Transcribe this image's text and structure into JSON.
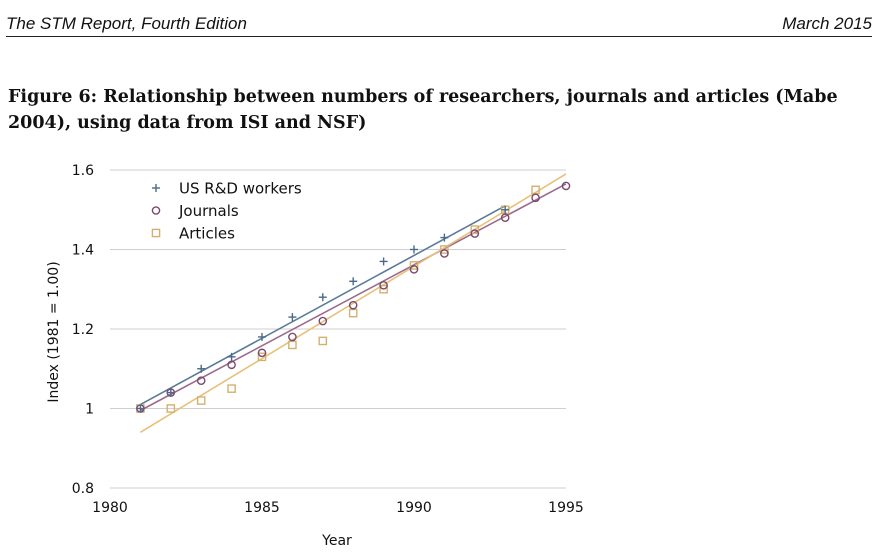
{
  "header": {
    "left": "The STM Report, Fourth Edition",
    "right": "March 2015"
  },
  "figure": {
    "title": "Figure 6: Relationship between numbers of researchers, journals and articles (Mabe 2004), using data from ISI and NSF)"
  },
  "chart_data": {
    "type": "scatter",
    "xlabel": "Year",
    "ylabel": "Index (1981 = 1.00)",
    "xlim": [
      1980,
      1995
    ],
    "ylim": [
      0.8,
      1.6
    ],
    "xticks": [
      1980,
      1985,
      1990,
      1995
    ],
    "yticks": [
      0.8,
      1,
      1.2,
      1.4,
      1.6
    ],
    "ytick_labels": [
      "0.8",
      "1",
      "1.2",
      "1.4",
      "1.6"
    ],
    "grid": "horizontal",
    "legend_position": "top-left",
    "series": [
      {
        "name": "US R&D workers",
        "marker": "plus",
        "color": "#4a6a8c",
        "trend_color": "#5b7a99",
        "x": [
          1981,
          1982,
          1983,
          1984,
          1985,
          1986,
          1987,
          1988,
          1989,
          1990,
          1991,
          1993
        ],
        "y": [
          1.0,
          1.04,
          1.1,
          1.13,
          1.18,
          1.23,
          1.28,
          1.32,
          1.37,
          1.4,
          1.43,
          1.5
        ],
        "trend": [
          [
            1981,
            1.01
          ],
          [
            1993,
            1.51
          ]
        ]
      },
      {
        "name": "Journals",
        "marker": "circle",
        "color": "#7a4a6e",
        "trend_color": "#9b6a8c",
        "x": [
          1981,
          1982,
          1983,
          1984,
          1985,
          1986,
          1987,
          1988,
          1989,
          1990,
          1991,
          1992,
          1993,
          1994,
          1995
        ],
        "y": [
          1.0,
          1.04,
          1.07,
          1.11,
          1.14,
          1.18,
          1.22,
          1.26,
          1.31,
          1.35,
          1.39,
          1.44,
          1.48,
          1.53,
          1.56
        ],
        "trend": [
          [
            1981,
            0.995
          ],
          [
            1995,
            1.565
          ]
        ]
      },
      {
        "name": "Articles",
        "marker": "square",
        "color": "#d4b070",
        "trend_color": "#e8c078",
        "x": [
          1981,
          1982,
          1983,
          1984,
          1985,
          1986,
          1987,
          1988,
          1989,
          1990,
          1991,
          1992,
          1993,
          1994
        ],
        "y": [
          1.0,
          1.0,
          1.02,
          1.05,
          1.13,
          1.16,
          1.17,
          1.24,
          1.3,
          1.36,
          1.4,
          1.45,
          1.5,
          1.55
        ],
        "trend": [
          [
            1981,
            0.94
          ],
          [
            1995,
            1.59
          ]
        ]
      }
    ]
  }
}
